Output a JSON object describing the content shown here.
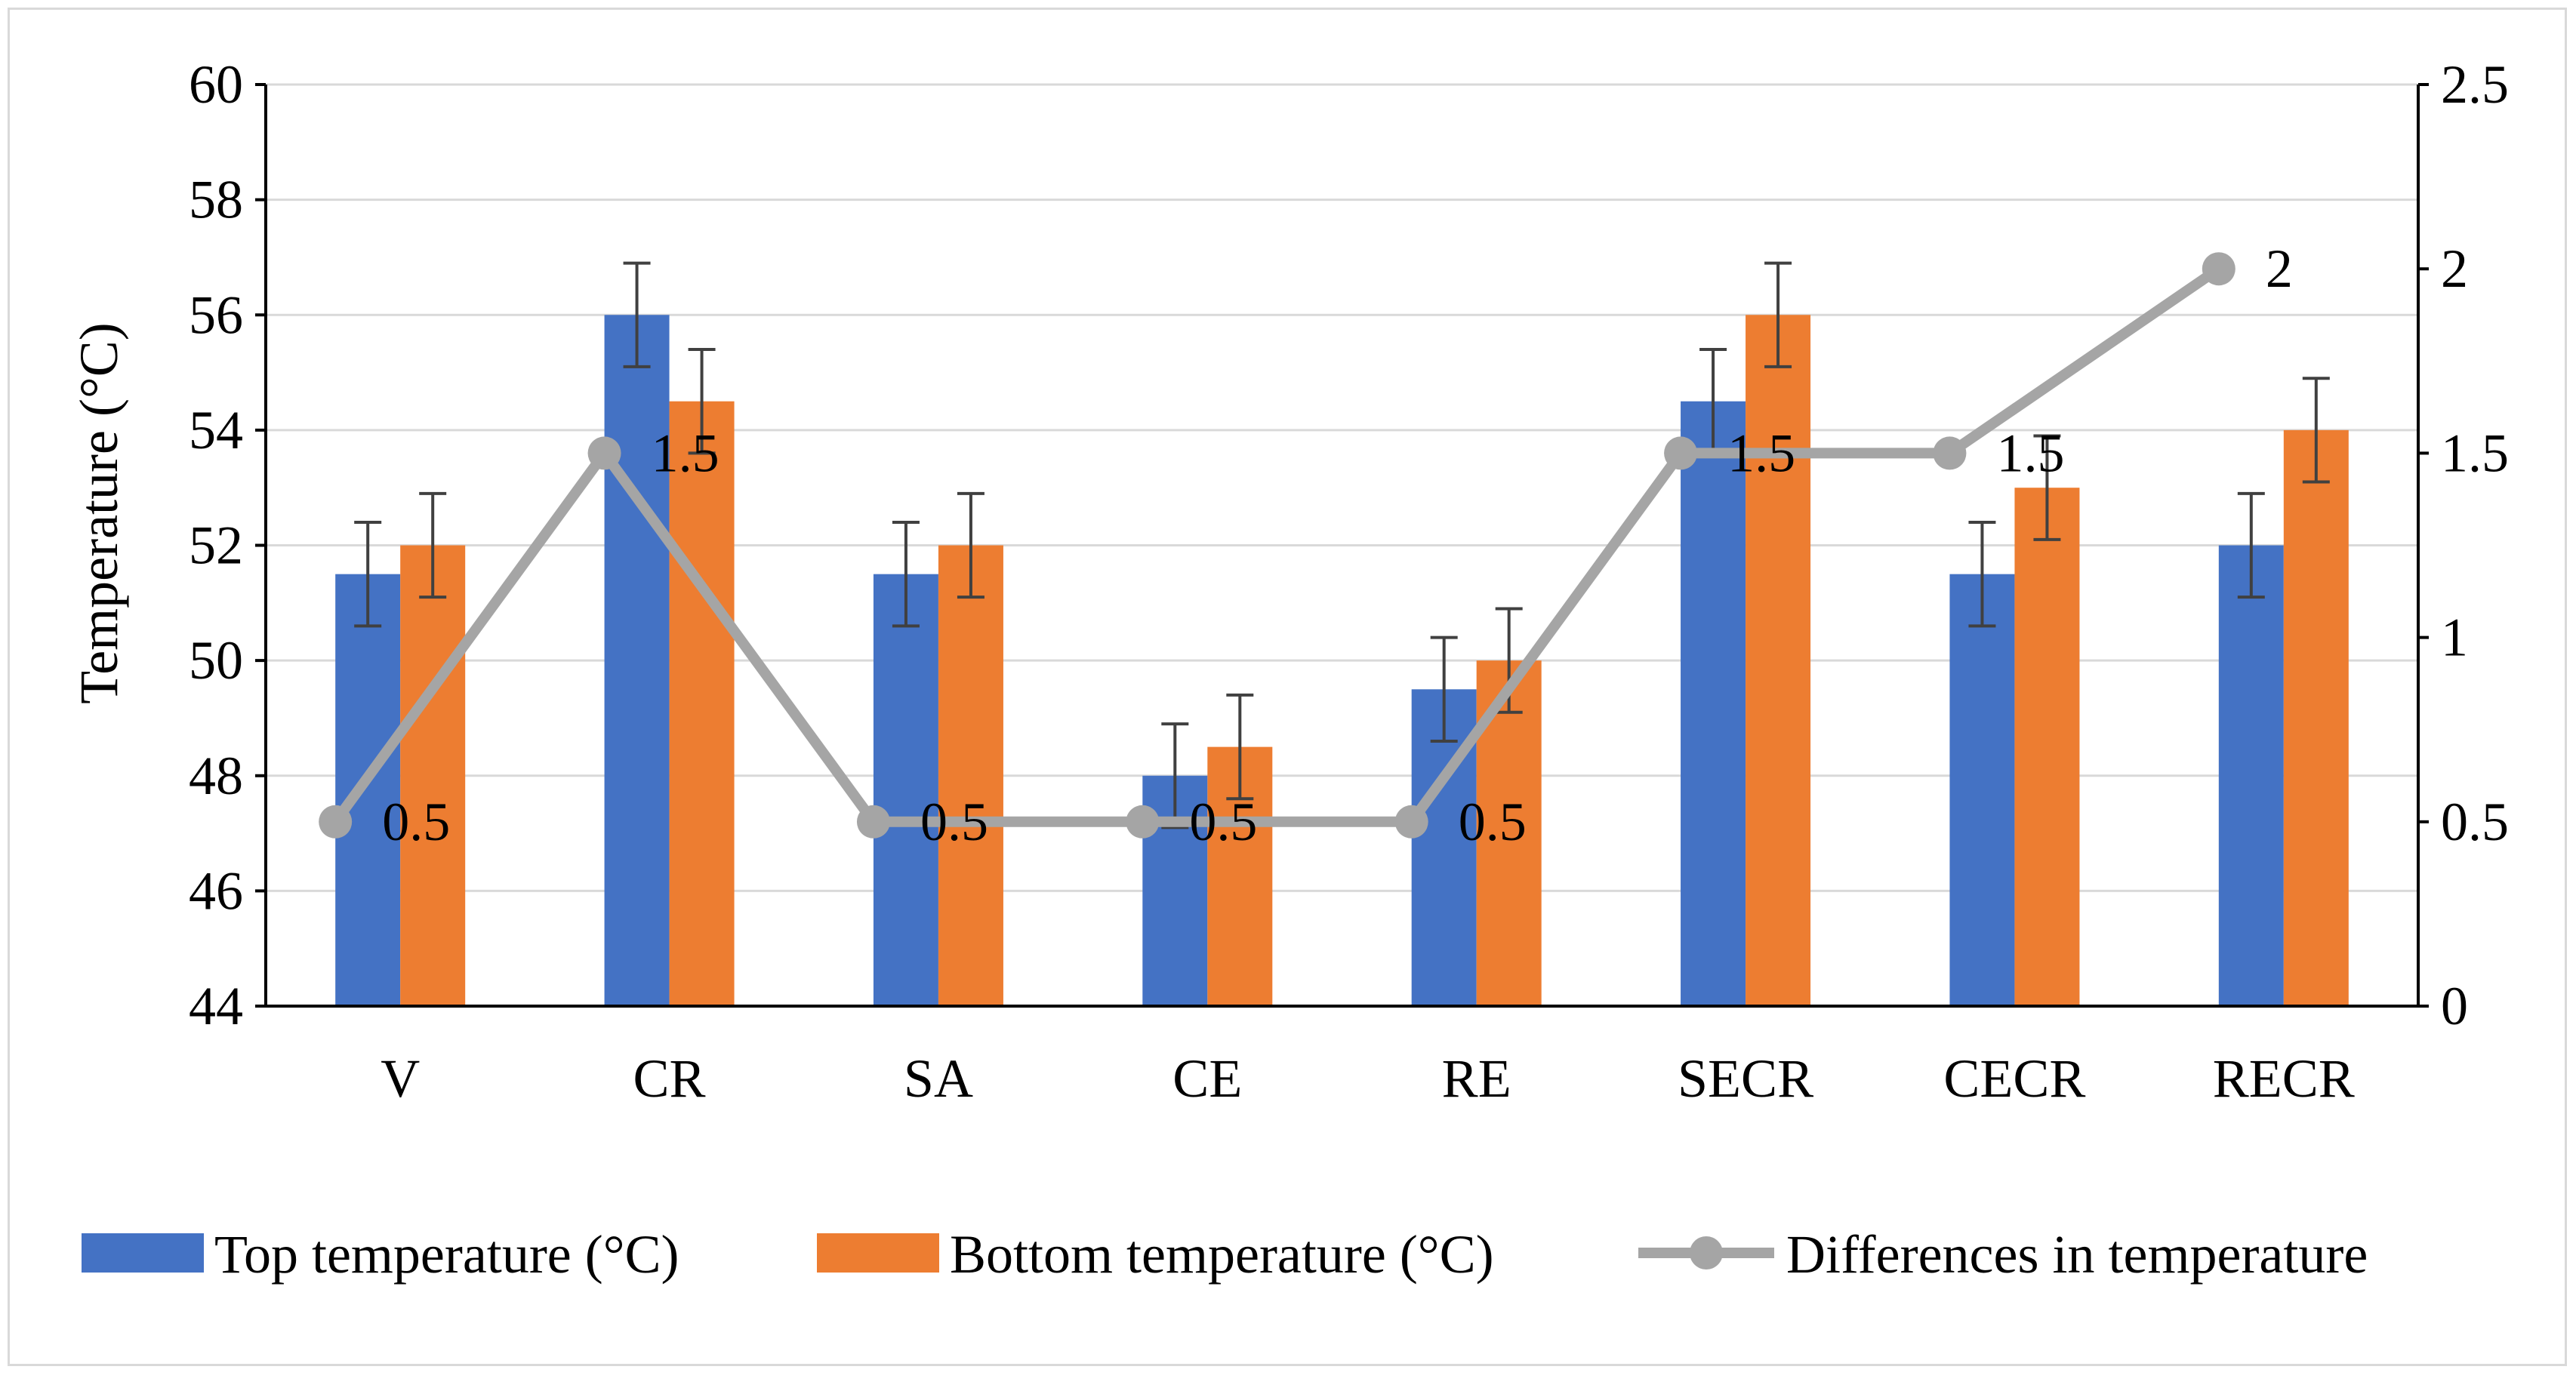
{
  "chart_data": {
    "type": "bar",
    "title": "",
    "xlabel": "",
    "ylabel": "Temperature (°C)",
    "y2label": "",
    "categories": [
      "V",
      "CR",
      "SA",
      "CE",
      "RE",
      "SECR",
      "CECR",
      "RECR"
    ],
    "ylim": [
      44,
      60
    ],
    "yticks": [
      "44",
      "46",
      "48",
      "50",
      "52",
      "54",
      "56",
      "58",
      "60"
    ],
    "y2lim": [
      0,
      2.5
    ],
    "y2ticks": [
      "0",
      "0.5",
      "1",
      "1.5",
      "2",
      "2.5"
    ],
    "grid": true,
    "legend_position": "bottom",
    "error_bar": 0.9,
    "series": [
      {
        "name": "Top temperature (°C)",
        "type": "bar",
        "axis": "left",
        "color": "#4472c4",
        "values": [
          51.5,
          56,
          51.5,
          48,
          49.5,
          54.5,
          51.5,
          52
        ]
      },
      {
        "name": "Bottom temperature (°C)",
        "type": "bar",
        "axis": "left",
        "color": "#ed7d31",
        "values": [
          52,
          54.5,
          52,
          48.5,
          50,
          56,
          53,
          54
        ]
      },
      {
        "name": "Differences in temperature",
        "type": "line",
        "axis": "right",
        "color": "#a5a5a5",
        "values": [
          0.5,
          1.5,
          0.5,
          0.5,
          0.5,
          1.5,
          1.5,
          2
        ],
        "data_labels": [
          "0.5",
          "1.5",
          "0.5",
          "0.5",
          "0.5",
          "1.5",
          "1.5",
          "2"
        ]
      }
    ]
  }
}
